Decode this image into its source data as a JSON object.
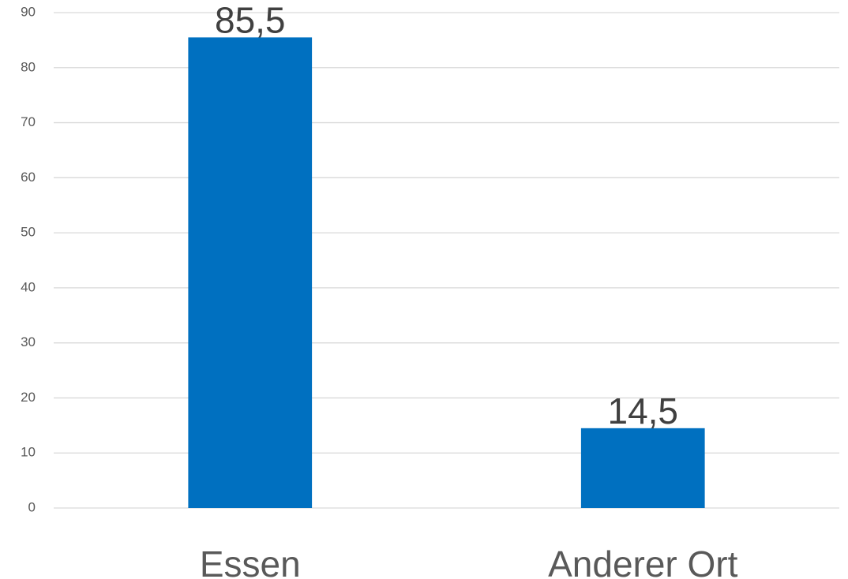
{
  "chart_data": {
    "type": "bar",
    "categories": [
      "Essen",
      "Anderer Ort"
    ],
    "values": [
      85.5,
      14.5
    ],
    "value_labels": [
      "85,5",
      "14,5"
    ],
    "color": "#0070c0",
    "ylim": [
      0,
      90
    ],
    "yticks": [
      0,
      10,
      20,
      30,
      40,
      50,
      60,
      70,
      80,
      90
    ],
    "grid": true
  }
}
